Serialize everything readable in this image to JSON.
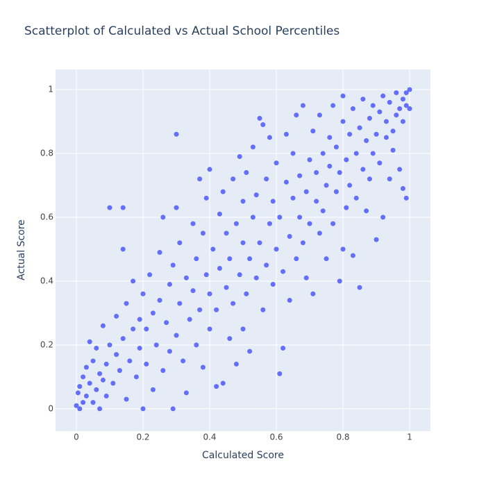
{
  "chart_data": {
    "type": "scatter",
    "title": "Scatterplot of Calculated vs Actual School Percentiles",
    "x_label": "Calculated Score",
    "y_label": "Actual Score",
    "color": "#636efa",
    "grid": true,
    "xlim": [
      -0.0625,
      1.0625
    ],
    "ylim": [
      -0.07,
      1.063
    ],
    "xticks": [
      0,
      0.2,
      0.4,
      0.6,
      0.8,
      1
    ],
    "yticks": [
      0,
      0.2,
      0.4,
      0.6,
      0.8,
      1
    ],
    "x": [
      0,
      0.01,
      0.005,
      0.01,
      0.02,
      0.02,
      0.03,
      0.03,
      0.04,
      0.04,
      0.05,
      0.05,
      0.06,
      0.06,
      0.07,
      0.07,
      0.08,
      0.08,
      0.09,
      0.09,
      0.1,
      0.1,
      0.11,
      0.12,
      0.12,
      0.13,
      0.14,
      0.14,
      0.14,
      0.15,
      0.15,
      0.16,
      0.17,
      0.17,
      0.18,
      0.19,
      0.19,
      0.2,
      0.2,
      0.21,
      0.21,
      0.22,
      0.23,
      0.23,
      0.24,
      0.25,
      0.25,
      0.26,
      0.26,
      0.27,
      0.28,
      0.28,
      0.29,
      0.29,
      0.3,
      0.3,
      0.3,
      0.31,
      0.31,
      0.32,
      0.33,
      0.33,
      0.34,
      0.35,
      0.35,
      0.36,
      0.36,
      0.37,
      0.37,
      0.38,
      0.38,
      0.39,
      0.39,
      0.4,
      0.4,
      0.4,
      0.41,
      0.42,
      0.42,
      0.43,
      0.43,
      0.44,
      0.44,
      0.45,
      0.45,
      0.46,
      0.46,
      0.47,
      0.47,
      0.48,
      0.48,
      0.49,
      0.49,
      0.5,
      0.5,
      0.5,
      0.51,
      0.51,
      0.52,
      0.52,
      0.53,
      0.53,
      0.54,
      0.54,
      0.55,
      0.55,
      0.56,
      0.56,
      0.57,
      0.57,
      0.58,
      0.58,
      0.59,
      0.59,
      0.6,
      0.6,
      0.61,
      0.61,
      0.62,
      0.62,
      0.63,
      0.63,
      0.64,
      0.64,
      0.65,
      0.65,
      0.66,
      0.66,
      0.67,
      0.67,
      0.68,
      0.68,
      0.69,
      0.69,
      0.7,
      0.7,
      0.71,
      0.71,
      0.72,
      0.72,
      0.73,
      0.73,
      0.74,
      0.74,
      0.75,
      0.75,
      0.76,
      0.76,
      0.77,
      0.77,
      0.78,
      0.78,
      0.79,
      0.79,
      0.8,
      0.8,
      0.8,
      0.81,
      0.81,
      0.82,
      0.82,
      0.83,
      0.83,
      0.84,
      0.84,
      0.85,
      0.85,
      0.86,
      0.86,
      0.87,
      0.87,
      0.88,
      0.88,
      0.89,
      0.89,
      0.9,
      0.9,
      0.91,
      0.91,
      0.92,
      0.92,
      0.93,
      0.93,
      0.94,
      0.94,
      0.95,
      0.95,
      0.96,
      0.96,
      0.97,
      0.97,
      0.98,
      0.98,
      0.98,
      0.99,
      0.99,
      0.99,
      1,
      1
    ],
    "y": [
      0.01,
      0,
      0.05,
      0.07,
      0.02,
      0.1,
      0.04,
      0.13,
      0.08,
      0.21,
      0.02,
      0.15,
      0.06,
      0.19,
      0.11,
      0,
      0.09,
      0.26,
      0.14,
      0.04,
      0.2,
      0.63,
      0.08,
      0.17,
      0.29,
      0.12,
      0.63,
      0.5,
      0.22,
      0.03,
      0.33,
      0.15,
      0.25,
      0.4,
      0.1,
      0.19,
      0.28,
      0,
      0.36,
      0.14,
      0.25,
      0.42,
      0.3,
      0.06,
      0.2,
      0.49,
      0.34,
      0.12,
      0.6,
      0.27,
      0.39,
      0.18,
      0,
      0.45,
      0.86,
      0.23,
      0.63,
      0.33,
      0.52,
      0.15,
      0.41,
      0.05,
      0.28,
      0.58,
      0.37,
      0.2,
      0.47,
      0.72,
      0.31,
      0.13,
      0.55,
      0.42,
      0.66,
      0.25,
      0.75,
      0.36,
      0.5,
      0.07,
      0.31,
      0.61,
      0.44,
      0.08,
      0.68,
      0.38,
      0.55,
      0.22,
      0.47,
      0.72,
      0.33,
      0.58,
      0.14,
      0.42,
      0.79,
      0.25,
      0.52,
      0.65,
      0.36,
      0.74,
      0.47,
      0.18,
      0.6,
      0.82,
      0.41,
      0.67,
      0.91,
      0.52,
      0.89,
      0.31,
      0.72,
      0.45,
      0.58,
      0.85,
      0.39,
      0.65,
      0.5,
      0.77,
      0.11,
      0.6,
      0.19,
      0.43,
      0.71,
      0.86,
      0.54,
      0.34,
      0.66,
      0.8,
      0.47,
      0.92,
      0.6,
      0.73,
      0.52,
      0.95,
      0.68,
      0.41,
      0.78,
      0.58,
      0.87,
      0.36,
      0.65,
      0.74,
      0.55,
      0.92,
      0.8,
      0.62,
      0.7,
      0.47,
      0.85,
      0.76,
      0.58,
      0.95,
      0.68,
      0.82,
      0.4,
      0.74,
      0.9,
      0.5,
      0.98,
      0.78,
      0.63,
      0.86,
      0.7,
      0.48,
      0.94,
      0.8,
      0.66,
      0.38,
      0.88,
      0.75,
      0.97,
      0.84,
      0.62,
      0.91,
      0.72,
      0.8,
      0.95,
      0.53,
      0.86,
      0.77,
      0.93,
      0.6,
      0.98,
      0.85,
      0.9,
      0.72,
      0.96,
      0.87,
      0.81,
      0.92,
      0.99,
      0.75,
      0.94,
      0.69,
      0.97,
      0.9,
      0.66,
      0.99,
      0.95,
      1,
      0.94
    ]
  }
}
